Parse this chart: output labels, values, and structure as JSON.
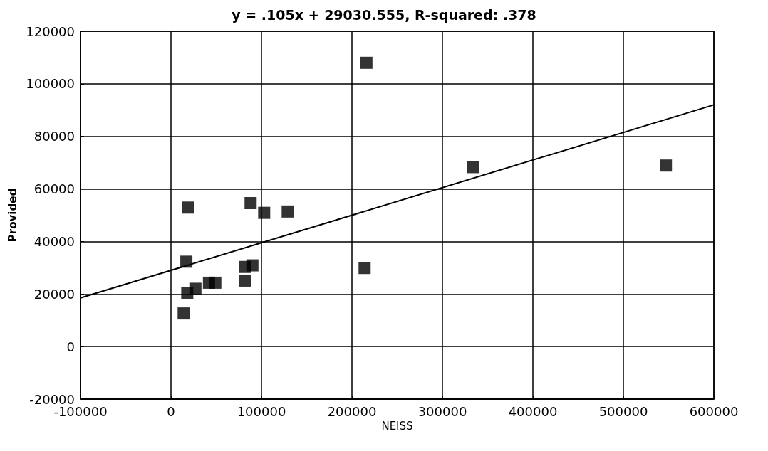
{
  "chart_data": {
    "type": "scatter",
    "title": "y = .105x + 29030.555, R-squared: .378",
    "xlabel": "NEISS",
    "ylabel": "Provided",
    "marker": "square",
    "grid": true,
    "series": [
      {
        "color": "#000000",
        "x": [
          19000,
          88000,
          103000,
          129000,
          17000,
          82000,
          90000,
          82000,
          27000,
          18000,
          42000,
          49000,
          14000,
          216000,
          214000,
          334000,
          547000
        ],
        "values": [
          52900,
          54600,
          50900,
          51400,
          32300,
          30300,
          30900,
          25100,
          22000,
          20300,
          24300,
          24300,
          12600,
          108000,
          29900,
          68300,
          68900
        ]
      },
      {
        "type": "line",
        "color": "#000000",
        "marker": "none",
        "x": [
          -100000,
          600000
        ],
        "values": [
          18500,
          92000
        ]
      }
    ],
    "xlim": [
      -100000,
      600000
    ],
    "xticks": [
      -100000,
      0,
      100000,
      200000,
      300000,
      400000,
      500000,
      600000
    ],
    "ylim": [
      -20000,
      120000
    ],
    "yticks": [
      -20000,
      0,
      20000,
      40000,
      60000,
      80000,
      100000,
      120000
    ]
  }
}
